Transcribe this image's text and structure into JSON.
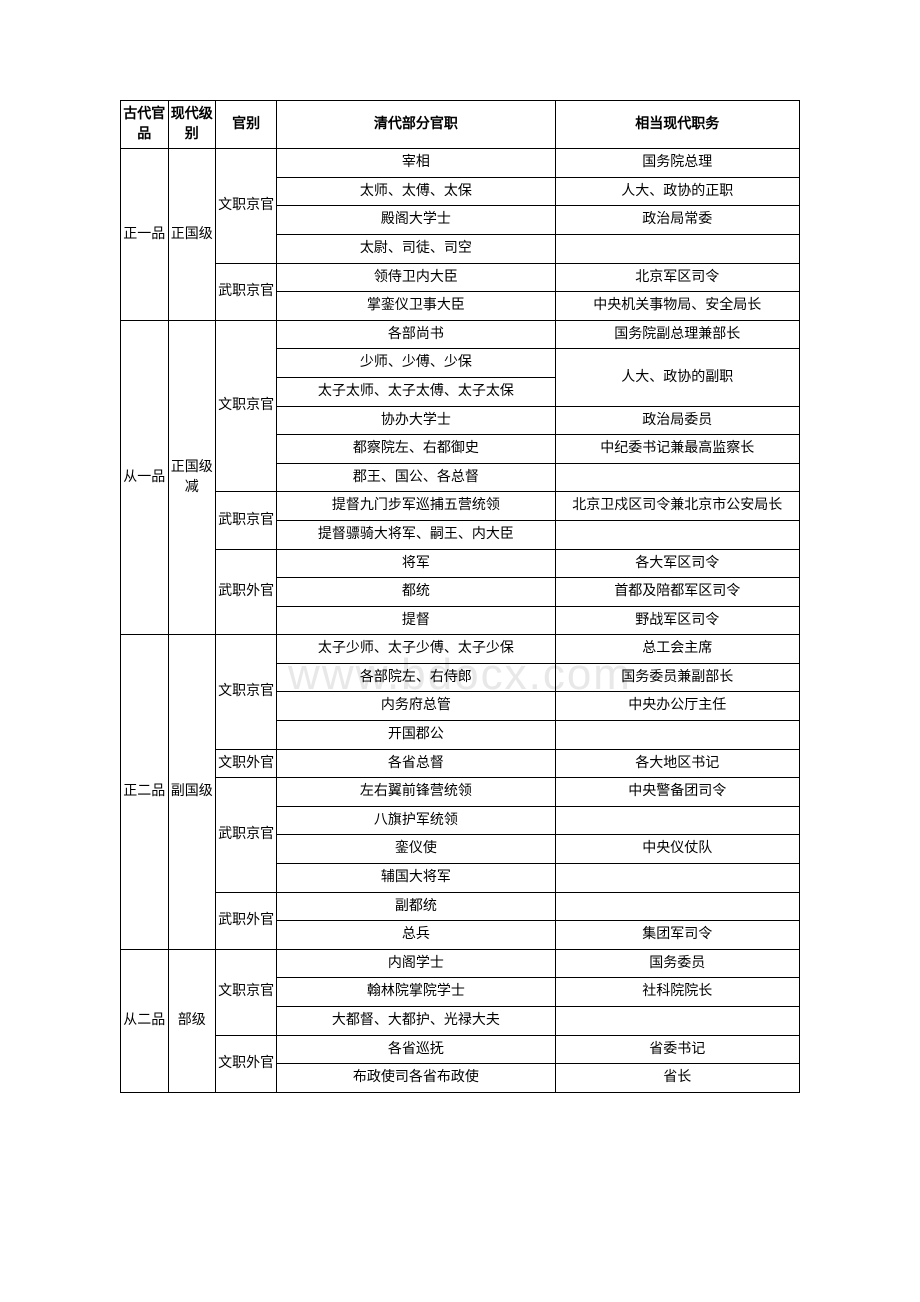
{
  "watermark": "www.bdocx.com",
  "headers": [
    "古代官品",
    "现代级别",
    "官别",
    "清代部分官职",
    "相当现代职务"
  ],
  "colors": {
    "border": "#000000",
    "text": "#000000",
    "background": "#ffffff",
    "watermark": "#e8e8e8"
  },
  "fontsize": {
    "cell": 14,
    "header": 14
  },
  "col_widths_pct": [
    7,
    7,
    9,
    41,
    36
  ],
  "rows": [
    {
      "c1": "正一品",
      "c1rs": 6,
      "c2": "正国级",
      "c2rs": 6,
      "c3": "文职京官",
      "c3rs": 4,
      "c4": "宰相",
      "c5": "国务院总理"
    },
    {
      "c4": "太师、太傅、太保",
      "c5": "人大、政协的正职"
    },
    {
      "c4": "殿阁大学士",
      "c5": "政治局常委"
    },
    {
      "c4": "太尉、司徒、司空",
      "c5": ""
    },
    {
      "c3": "武职京官",
      "c3rs": 2,
      "c4": "领侍卫内大臣",
      "c5": "北京军区司令"
    },
    {
      "c4": "掌銮仪卫事大臣",
      "c5": "中央机关事物局、安全局长"
    },
    {
      "c1": "从一品",
      "c1rs": 11,
      "c2": "正国级减",
      "c2rs": 11,
      "c3": "文职京官",
      "c3rs": 6,
      "c4": "各部尚书",
      "c5": "国务院副总理兼部长"
    },
    {
      "c4": "少师、少傅、少保",
      "c5": "人大、政协的副职",
      "c5rs": 2
    },
    {
      "c4": "太子太师、太子太傅、太子太保"
    },
    {
      "c4": "协办大学士",
      "c5": "政治局委员"
    },
    {
      "c4": "都察院左、右都御史",
      "c5": "中纪委书记兼最高监察长"
    },
    {
      "c4": "郡王、国公、各总督",
      "c5": ""
    },
    {
      "c3": "武职京官",
      "c3rs": 2,
      "c4": "提督九门步军巡捕五营统领",
      "c5": "北京卫戍区司令兼北京市公安局长"
    },
    {
      "c4": "提督骠骑大将军、嗣王、内大臣",
      "c5": ""
    },
    {
      "c3": "武职外官",
      "c3rs": 3,
      "c4": "将军",
      "c5": "各大军区司令"
    },
    {
      "c4": "都统",
      "c5": "首都及陪都军区司令"
    },
    {
      "c4": "提督",
      "c5": "野战军区司令"
    },
    {
      "c1": "正二品",
      "c1rs": 11,
      "c2": "副国级",
      "c2rs": 11,
      "c3": "文职京官",
      "c3rs": 4,
      "c4": "太子少师、太子少傅、太子少保",
      "c5": "总工会主席"
    },
    {
      "c4": "各部院左、右侍郎",
      "c5": "国务委员兼副部长"
    },
    {
      "c4": "内务府总管",
      "c5": "中央办公厅主任"
    },
    {
      "c4": "开国郡公",
      "c5": ""
    },
    {
      "c3": "文职外官",
      "c3rs": 1,
      "c4": "各省总督",
      "c5": "各大地区书记"
    },
    {
      "c3": "武职京官",
      "c3rs": 4,
      "c4": "左右翼前锋营统领",
      "c5": "中央警备团司令"
    },
    {
      "c4": "八旗护军统领",
      "c5": ""
    },
    {
      "c4": "銮仪使",
      "c5": "中央仪仗队"
    },
    {
      "c4": "辅国大将军",
      "c5": ""
    },
    {
      "c3": "武职外官",
      "c3rs": 2,
      "c4": "副都统",
      "c5": ""
    },
    {
      "c4": "总兵",
      "c5": "集团军司令"
    },
    {
      "c1": "从二品",
      "c1rs": 5,
      "c2": "部级",
      "c2rs": 5,
      "c3": "文职京官",
      "c3rs": 3,
      "c4": "内阁学士",
      "c5": "国务委员"
    },
    {
      "c4": "翰林院掌院学士",
      "c5": "社科院院长"
    },
    {
      "c4": "大都督、大都护、光禄大夫",
      "c5": ""
    },
    {
      "c3": "文职外官",
      "c3rs": 2,
      "c4": "各省巡抚",
      "c5": "省委书记"
    },
    {
      "c4": "布政使司各省布政使",
      "c5": "省长"
    }
  ]
}
